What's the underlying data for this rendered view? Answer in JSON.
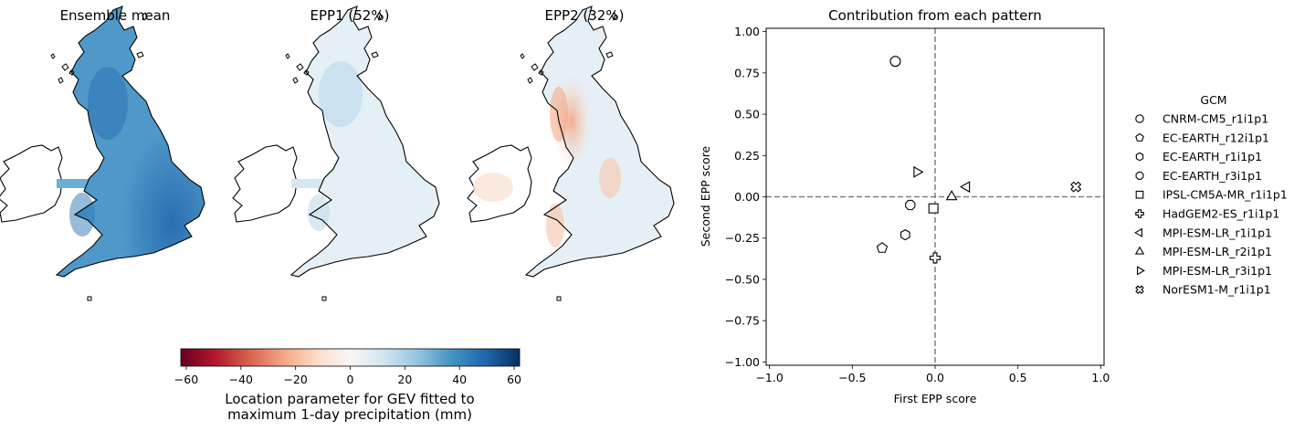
{
  "maps": {
    "titles": [
      "Ensemble mean",
      "EPP1 (52%)",
      "EPP2 (32%)"
    ]
  },
  "colorbar": {
    "ticks": [
      -60,
      -40,
      -20,
      0,
      20,
      40,
      60
    ],
    "range": [
      -62,
      62
    ],
    "colormap": "RdBu",
    "label_line1": "Location parameter for GEV fitted to",
    "label_line2": "maximum 1-day precipitation (mm)"
  },
  "chart_data": {
    "type": "scatter",
    "title": "Contribution from each pattern",
    "xlabel": "First EPP score",
    "ylabel": "Second EPP score",
    "xlim": [
      -1.02,
      1.02
    ],
    "ylim": [
      -1.02,
      1.02
    ],
    "xticks": [
      -1.0,
      -0.5,
      0.0,
      0.5,
      1.0
    ],
    "yticks": [
      1.0,
      0.75,
      0.5,
      0.25,
      0.0,
      -0.25,
      -0.5,
      -0.75,
      -1.0
    ],
    "reference_lines": {
      "x": 0,
      "y": 0,
      "style": "dashed",
      "color": "#808080"
    },
    "grid": false,
    "legend_title": "GCM",
    "legend_position": "right, outside plot",
    "series": [
      {
        "name": "CNRM-CM5_r1i1p1",
        "marker": "circle",
        "x": -0.24,
        "y": 0.82
      },
      {
        "name": "EC-EARTH_r12i1p1",
        "marker": "pentagon",
        "x": -0.32,
        "y": -0.31
      },
      {
        "name": "EC-EARTH_r1i1p1",
        "marker": "hexagon",
        "x": -0.18,
        "y": -0.23
      },
      {
        "name": "EC-EARTH_r3i1p1",
        "marker": "octagon",
        "x": -0.15,
        "y": -0.05
      },
      {
        "name": "IPSL-CM5A-MR_r1i1p1",
        "marker": "square",
        "x": -0.01,
        "y": -0.07
      },
      {
        "name": "HadGEM2-ES_r1i1p1",
        "marker": "plus",
        "x": 0.0,
        "y": -0.37
      },
      {
        "name": "MPI-ESM-LR_r1i1p1",
        "marker": "triangle-left",
        "x": 0.19,
        "y": 0.06
      },
      {
        "name": "MPI-ESM-LR_r2i1p1",
        "marker": "triangle-up",
        "x": 0.1,
        "y": 0.0
      },
      {
        "name": "MPI-ESM-LR_r3i1p1",
        "marker": "triangle-right",
        "x": -0.11,
        "y": 0.15
      },
      {
        "name": "NorESM1-M_r1i1p1",
        "marker": "x-filled",
        "x": 0.85,
        "y": 0.06
      }
    ]
  }
}
